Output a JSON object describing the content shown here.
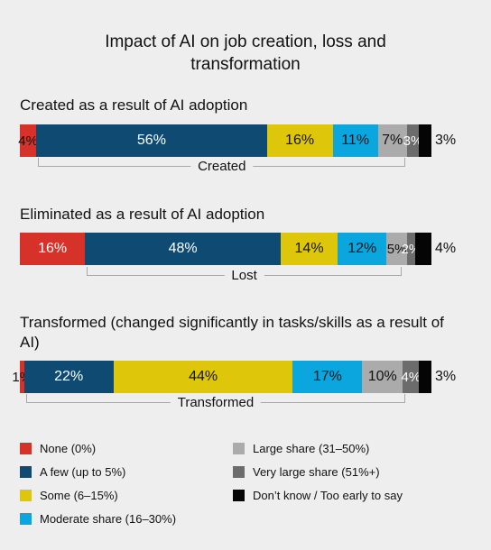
{
  "chart_data": {
    "type": "bar",
    "orientation": "horizontal-stacked",
    "title": "Impact of AI on job creation, loss and\ntransformation",
    "categories": [
      "None (0%)",
      "A few (up to 5%)",
      "Some (6–15%)",
      "Moderate share (16–30%)",
      "Large share (31–50%)",
      "Very large share (51%+)",
      "Don’t know / Too early to say"
    ],
    "colors": [
      "#d7322a",
      "#0f4a72",
      "#dec70a",
      "#0aa6dd",
      "#ababab",
      "#6c6c6c",
      "#050505"
    ],
    "label_colors": [
      "#ffffff",
      "#ffffff",
      "#111111",
      "#111111",
      "#111111",
      "#ffffff",
      "#111111"
    ],
    "legend_position": "bottom",
    "sections": [
      {
        "title": "Created as a result of AI adoption",
        "values": [
          4,
          56,
          16,
          11,
          7,
          3,
          3
        ],
        "labels": [
          "4%",
          "56%",
          "16%",
          "11%",
          "7%",
          "3%",
          "3%"
        ],
        "bracket_label": "Created"
      },
      {
        "title": "Eliminated as a result of AI adoption",
        "values": [
          16,
          48,
          14,
          12,
          5,
          2,
          4
        ],
        "labels": [
          "16%",
          "48%",
          "14%",
          "12%",
          "5%",
          "2%",
          "4%"
        ],
        "bracket_label": "Lost"
      },
      {
        "title": "Transformed (changed significantly in tasks/skills as a result of AI)",
        "values": [
          1,
          22,
          44,
          17,
          10,
          4,
          3
        ],
        "labels": [
          "1%",
          "22%",
          "44%",
          "17%",
          "10%",
          "4%",
          "3%"
        ],
        "bracket_label": "Transformed"
      }
    ]
  }
}
